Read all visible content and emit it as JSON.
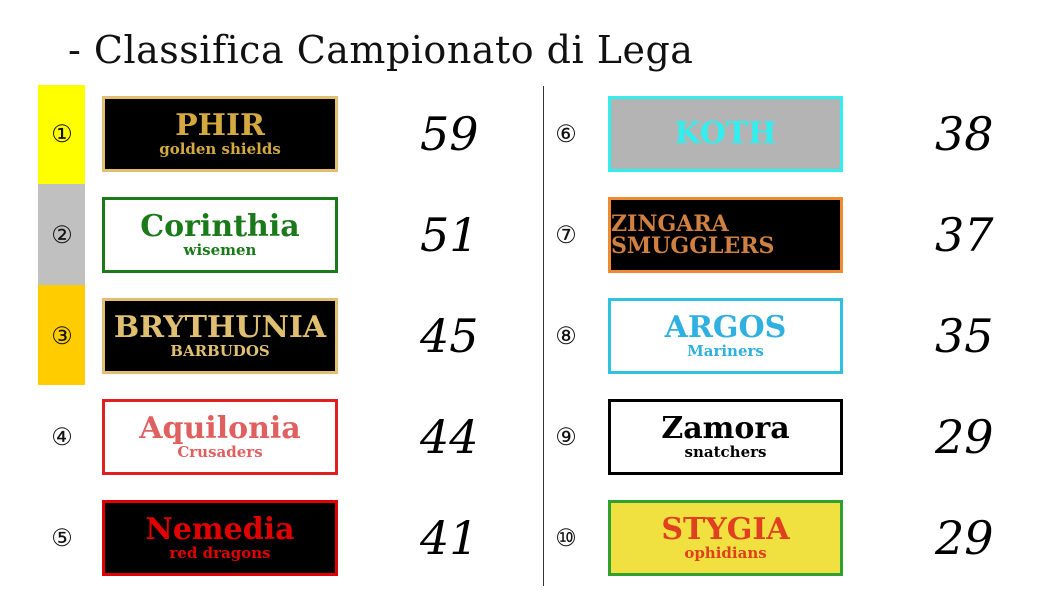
{
  "title": "- Classifica Campionato di Lega",
  "rank_colors": {
    "1": "#ffff00",
    "2": "#c0c0c0",
    "3": "#ffcc00"
  },
  "teams": [
    {
      "rank": "①",
      "name": "PHIR",
      "sub": "golden shields",
      "score": "59",
      "bg": "#000000",
      "border": "#e0c070",
      "fg": "#d4a940"
    },
    {
      "rank": "②",
      "name": "Corinthia",
      "sub": "wisemen",
      "score": "51",
      "bg": "#ffffff",
      "border": "#1a7a1a",
      "fg": "#1a7a1a"
    },
    {
      "rank": "③",
      "name": "BRYTHUNIA",
      "sub": "BARBUDOS",
      "score": "45",
      "bg": "#000000",
      "border": "#e0c070",
      "fg": "#e0c070"
    },
    {
      "rank": "④",
      "name": "Aquilonia",
      "sub": "Crusaders",
      "score": "44",
      "bg": "#ffffff",
      "border": "#e02020",
      "fg": "#e06060"
    },
    {
      "rank": "⑤",
      "name": "Nemedia",
      "sub": "red dragons",
      "score": "41",
      "bg": "#000000",
      "border": "#e00000",
      "fg": "#e00000"
    },
    {
      "rank": "⑥",
      "name": "KOTH",
      "sub": "",
      "score": "38",
      "bg": "#b4b4b4",
      "border": "#33eeee",
      "fg": "#33eeee"
    },
    {
      "rank": "⑦",
      "name": "ZINGARA SMUGGLERS",
      "sub": "",
      "score": "37",
      "bg": "#000000",
      "border": "#f08a30",
      "fg": "#d08040"
    },
    {
      "rank": "⑧",
      "name": "ARGOS",
      "sub": "Mariners",
      "score": "35",
      "bg": "#ffffff",
      "border": "#30c0e0",
      "fg": "#30b0e0"
    },
    {
      "rank": "⑨",
      "name": "Zamora",
      "sub": "snatchers",
      "score": "29",
      "bg": "#ffffff",
      "border": "#000000",
      "fg": "#000000"
    },
    {
      "rank": "⑩",
      "name": "STYGIA",
      "sub": "ophidians",
      "score": "29",
      "bg": "#f0e040",
      "border": "#30a030",
      "fg": "#e04020"
    }
  ]
}
